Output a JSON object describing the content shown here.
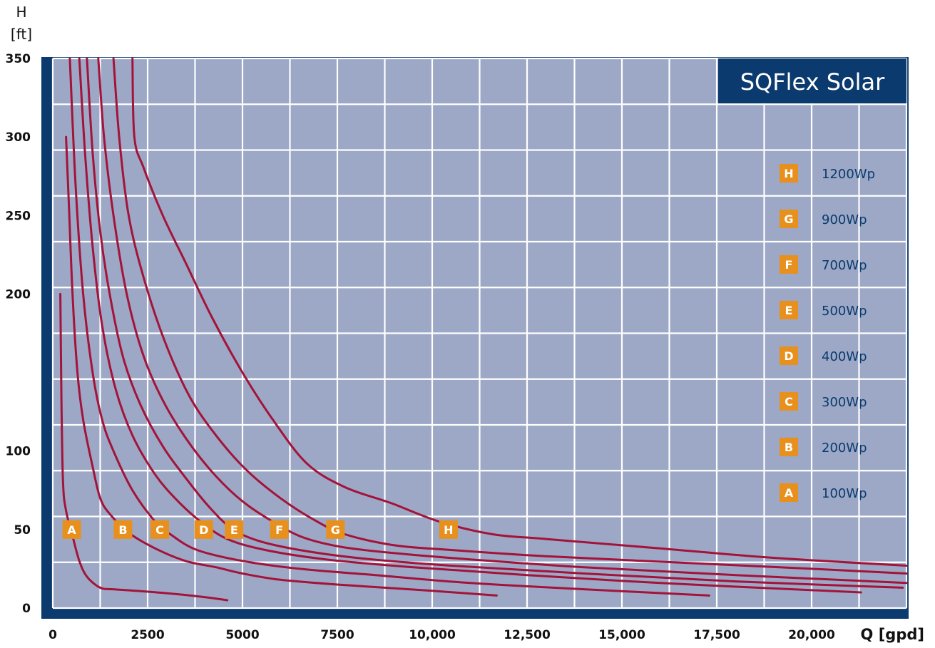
{
  "chart_data": {
    "type": "line",
    "title": "SQFlex Solar",
    "ylabel_line1": "H",
    "ylabel_line2": "[ft]",
    "xlabel": "Q [gpd]",
    "xlim": [
      0,
      22500
    ],
    "ylim": [
      0,
      350
    ],
    "xticks": [
      {
        "value": 0,
        "label": "0"
      },
      {
        "value": 2500,
        "label": "2500"
      },
      {
        "value": 5000,
        "label": "5000"
      },
      {
        "value": 7500,
        "label": "7500"
      },
      {
        "value": 10000,
        "label": "10,000"
      },
      {
        "value": 12500,
        "label": "12,500"
      },
      {
        "value": 15000,
        "label": "15,000"
      },
      {
        "value": 17500,
        "label": "17,500"
      },
      {
        "value": 20000,
        "label": "20,000"
      }
    ],
    "yticks": [
      {
        "value": 0,
        "label": "0"
      },
      {
        "value": 50,
        "label": "50"
      },
      {
        "value": 100,
        "label": "100"
      },
      {
        "value": 150,
        "label": ""
      },
      {
        "value": 200,
        "label": "200"
      },
      {
        "value": 250,
        "label": "250"
      },
      {
        "value": 300,
        "label": "300"
      },
      {
        "value": 350,
        "label": "350"
      }
    ],
    "grid": true,
    "legend_position": "right",
    "colors": {
      "plot_bg": "#9ca8c5",
      "frame": "#0b3a6e",
      "grid": "#ffffff",
      "curve": "#a3133a",
      "badge": "#e8901d"
    },
    "series": [
      {
        "name": "A",
        "legend": "100Wp",
        "points": [
          [
            200,
            200
          ],
          [
            230,
            130
          ],
          [
            270,
            80
          ],
          [
            350,
            62
          ],
          [
            530,
            45
          ],
          [
            700,
            30
          ],
          [
            900,
            20
          ],
          [
            1250,
            13
          ],
          [
            1600,
            12
          ],
          [
            2200,
            11
          ],
          [
            3000,
            9.5
          ],
          [
            4000,
            7
          ],
          [
            4600,
            5
          ]
        ]
      },
      {
        "name": "B",
        "legend": "200Wp",
        "points": [
          [
            350,
            300
          ],
          [
            420,
            260
          ],
          [
            520,
            200
          ],
          [
            650,
            150
          ],
          [
            800,
            120
          ],
          [
            1050,
            90
          ],
          [
            1250,
            70
          ],
          [
            1500,
            60
          ],
          [
            2000,
            48
          ],
          [
            2700,
            38
          ],
          [
            3500,
            30
          ],
          [
            4300,
            26
          ],
          [
            5000,
            22
          ],
          [
            6000,
            18
          ],
          [
            7500,
            15
          ],
          [
            10000,
            11
          ],
          [
            11700,
            8
          ]
        ]
      },
      {
        "name": "C",
        "legend": "300Wp",
        "points": [
          [
            450,
            350
          ],
          [
            600,
            270
          ],
          [
            800,
            200
          ],
          [
            1050,
            150
          ],
          [
            1300,
            120
          ],
          [
            1600,
            100
          ],
          [
            2100,
            75
          ],
          [
            2700,
            55
          ],
          [
            3100,
            47
          ],
          [
            3800,
            37
          ],
          [
            5000,
            30
          ],
          [
            6500,
            25
          ],
          [
            8500,
            21
          ],
          [
            11000,
            16
          ],
          [
            14000,
            12
          ],
          [
            17300,
            8
          ]
        ]
      },
      {
        "name": "D",
        "legend": "400Wp",
        "points": [
          [
            700,
            350
          ],
          [
            850,
            290
          ],
          [
            1050,
            230
          ],
          [
            1300,
            180
          ],
          [
            1650,
            140
          ],
          [
            2100,
            110
          ],
          [
            2700,
            85
          ],
          [
            3300,
            68
          ],
          [
            3900,
            55
          ],
          [
            4600,
            44
          ],
          [
            5600,
            37
          ],
          [
            7200,
            31
          ],
          [
            9500,
            26
          ],
          [
            12500,
            21
          ],
          [
            16000,
            16
          ],
          [
            19500,
            12
          ],
          [
            21300,
            10
          ]
        ]
      },
      {
        "name": "E",
        "legend": "500Wp",
        "points": [
          [
            900,
            350
          ],
          [
            1050,
            290
          ],
          [
            1250,
            240
          ],
          [
            1500,
            200
          ],
          [
            1850,
            160
          ],
          [
            2300,
            130
          ],
          [
            2900,
            103
          ],
          [
            3500,
            83
          ],
          [
            4100,
            65
          ],
          [
            4700,
            51
          ],
          [
            5400,
            43
          ],
          [
            6500,
            37
          ],
          [
            8000,
            32
          ],
          [
            10500,
            27
          ],
          [
            14000,
            22
          ],
          [
            18000,
            17
          ],
          [
            22400,
            13
          ]
        ]
      },
      {
        "name": "F",
        "legend": "700Wp",
        "points": [
          [
            1200,
            350
          ],
          [
            1350,
            300
          ],
          [
            1600,
            250
          ],
          [
            1950,
            200
          ],
          [
            2400,
            160
          ],
          [
            2950,
            130
          ],
          [
            3600,
            105
          ],
          [
            4300,
            84
          ],
          [
            5000,
            68
          ],
          [
            5800,
            55
          ],
          [
            6600,
            45
          ],
          [
            7600,
            39
          ],
          [
            9000,
            35
          ],
          [
            11000,
            31
          ],
          [
            14000,
            26
          ],
          [
            18000,
            21
          ],
          [
            22500,
            16
          ]
        ]
      },
      {
        "name": "G",
        "legend": "900Wp",
        "points": [
          [
            1600,
            350
          ],
          [
            1750,
            300
          ],
          [
            2000,
            250
          ],
          [
            2400,
            210
          ],
          [
            2950,
            170
          ],
          [
            3600,
            135
          ],
          [
            4300,
            110
          ],
          [
            5100,
            88
          ],
          [
            6000,
            70
          ],
          [
            6900,
            56
          ],
          [
            7700,
            47
          ],
          [
            9000,
            40
          ],
          [
            10500,
            37
          ],
          [
            13000,
            33
          ],
          [
            16500,
            29
          ],
          [
            20000,
            25
          ],
          [
            22500,
            22
          ]
        ]
      },
      {
        "name": "H",
        "legend": "1200Wp",
        "points": [
          [
            2100,
            350
          ],
          [
            2150,
            300
          ],
          [
            2400,
            280
          ],
          [
            2900,
            250
          ],
          [
            3500,
            220
          ],
          [
            4200,
            185
          ],
          [
            5000,
            150
          ],
          [
            5800,
            120
          ],
          [
            6700,
            92
          ],
          [
            7700,
            77
          ],
          [
            8900,
            67
          ],
          [
            10200,
            55
          ],
          [
            11600,
            47
          ],
          [
            13000,
            44
          ],
          [
            16000,
            38
          ],
          [
            19000,
            32
          ],
          [
            22500,
            27
          ]
        ]
      }
    ],
    "curve_labels": [
      {
        "name": "A",
        "x": 500,
        "y": 50
      },
      {
        "name": "B",
        "x": 1850,
        "y": 50
      },
      {
        "name": "C",
        "x": 2820,
        "y": 50
      },
      {
        "name": "D",
        "x": 3980,
        "y": 50
      },
      {
        "name": "E",
        "x": 4780,
        "y": 50
      },
      {
        "name": "F",
        "x": 5970,
        "y": 50
      },
      {
        "name": "G",
        "x": 7450,
        "y": 50
      },
      {
        "name": "H",
        "x": 10430,
        "y": 50
      }
    ]
  }
}
